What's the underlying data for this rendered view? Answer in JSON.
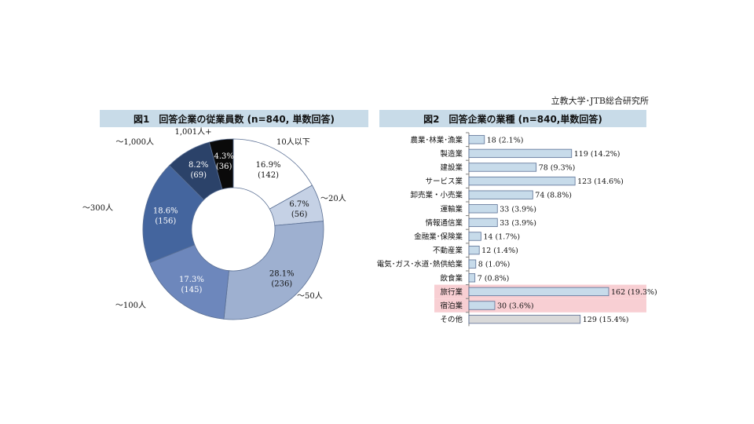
{
  "source": "立教大学･JTB総合研究所",
  "chart_data": [
    {
      "type": "pie",
      "title": "図1　回答企業の従業員数 (n=840, 単数回答)",
      "slices": [
        {
          "label": "10人以下",
          "percent": "16.9%",
          "count": "(142)",
          "value": 142,
          "color": "#ffffff"
        },
        {
          "label": "～20人",
          "percent": "6.7%",
          "count": "(56)",
          "value": 56,
          "color": "#c5d1e5"
        },
        {
          "label": "～50人",
          "percent": "28.1%",
          "count": "(236)",
          "value": 236,
          "color": "#9eb0d0"
        },
        {
          "label": "～100人",
          "percent": "17.3%",
          "count": "(145)",
          "value": 145,
          "color": "#6d87bc"
        },
        {
          "label": "～300人",
          "percent": "18.6%",
          "count": "(156)",
          "value": 156,
          "color": "#44659e"
        },
        {
          "label": "～1,000人",
          "percent": "8.2%",
          "count": "(69)",
          "value": 69,
          "color": "#2b4269"
        },
        {
          "label": "1,001人+",
          "percent": "4.3%",
          "count": "(36)",
          "value": 36,
          "color": "#0a0a0a"
        }
      ]
    },
    {
      "type": "bar",
      "title": "図2　回答企業の業種 (n=840,単数回答)",
      "categories": [
        "農業･林業･漁業",
        "製造業",
        "建設業",
        "サービス業",
        "卸売業・小売業",
        "運輸業",
        "情報通信業",
        "金融業･保険業",
        "不動産業",
        "電気･ガス･水道･熱供給業",
        "飲食業",
        "旅行業",
        "宿泊業",
        "その他"
      ],
      "values": [
        18,
        119,
        78,
        123,
        74,
        33,
        33,
        14,
        12,
        8,
        7,
        162,
        30,
        129
      ],
      "value_labels": [
        "18 (2.1%)",
        "119 (14.2%)",
        "78 (9.3%)",
        "123 (14.6%)",
        "74 (8.8%)",
        "33 (3.9%)",
        "33 (3.9%)",
        "14 (1.7%)",
        "12 (1.4%)",
        "8 (1.0%)",
        "7 (0.8%)",
        "162 (19.3%)",
        "30 (3.6%)",
        "129 (15.4%)"
      ],
      "bar_colors": [
        "#c7dbea",
        "#c7dbea",
        "#c7dbea",
        "#c7dbea",
        "#c7dbea",
        "#c7dbea",
        "#c7dbea",
        "#c7dbea",
        "#c7dbea",
        "#c7dbea",
        "#c7dbea",
        "#c7dbea",
        "#c7dbea",
        "#d9d9d9"
      ],
      "highlight_color": "#f8cfd3",
      "highlighted": [
        "旅行業",
        "宿泊業"
      ],
      "xlim": [
        0,
        162
      ]
    }
  ]
}
